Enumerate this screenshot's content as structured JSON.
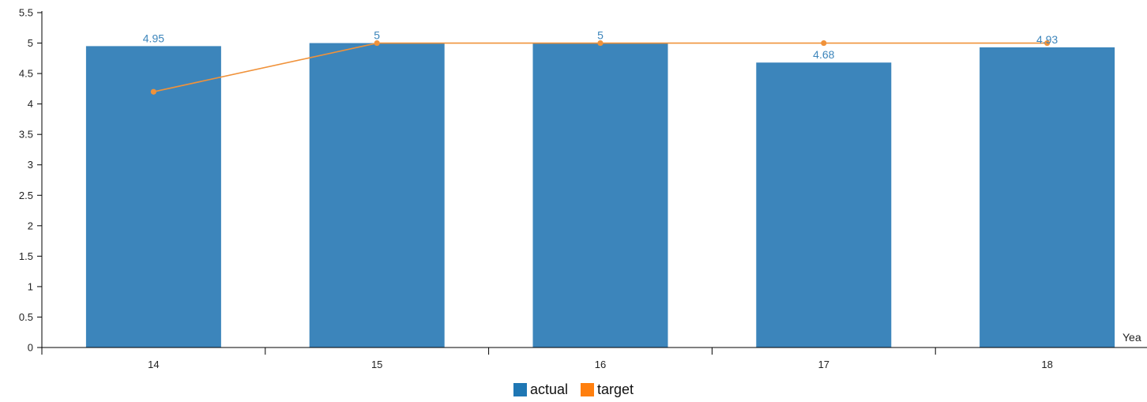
{
  "chart_data": {
    "type": "bar",
    "categories": [
      "14",
      "15",
      "16",
      "17",
      "18"
    ],
    "series": [
      {
        "name": "actual",
        "type": "bar",
        "values": [
          4.95,
          5,
          5,
          4.68,
          4.93
        ],
        "color": "#3c85bb",
        "data_labels": [
          "4.95",
          "5",
          "5",
          "4.68",
          "4.93"
        ]
      },
      {
        "name": "target",
        "type": "line",
        "values": [
          4.2,
          5,
          5,
          5,
          5
        ],
        "color": "#f0923a"
      }
    ],
    "y_ticks": [
      "0",
      "0.5",
      "1",
      "1.5",
      "2",
      "2.5",
      "3",
      "3.5",
      "4",
      "4.5",
      "5",
      "5.5"
    ],
    "ylim": [
      0,
      5.5
    ],
    "xlabel": "Yea",
    "ylabel": "",
    "grid": false,
    "legend_position": "bottom-center"
  },
  "legend": {
    "actual": {
      "label": "actual",
      "color": "#1f77b4"
    },
    "target": {
      "label": "target",
      "color": "#ff7f0e"
    }
  }
}
